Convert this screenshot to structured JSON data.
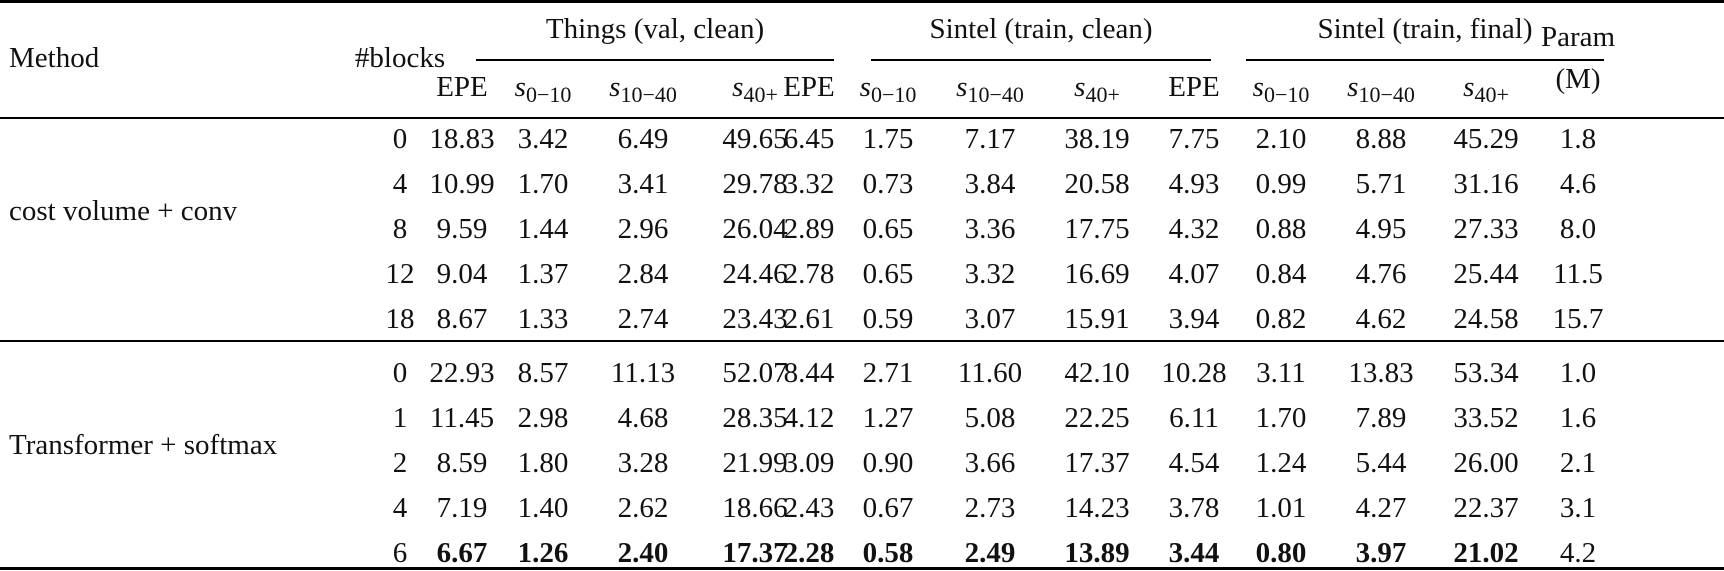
{
  "table": {
    "headers": {
      "method": "Method",
      "blocks": "#blocks",
      "groups": [
        {
          "label": "Things (val, clean)"
        },
        {
          "label": "Sintel (train, clean)"
        },
        {
          "label": "Sintel (train, final)"
        }
      ],
      "param_line1": "Param",
      "param_line2": "(M)",
      "sub": {
        "epe": "EPE",
        "s_var": "s",
        "s0_10": "0−10",
        "s10_40": "10−40",
        "s40p": "40+"
      }
    },
    "sections": [
      {
        "method": "cost volume + conv",
        "rows": [
          {
            "blocks": "0",
            "things": [
              "18.83",
              "3.42",
              "6.49",
              "49.65"
            ],
            "sintel_clean": [
              "6.45",
              "1.75",
              "7.17",
              "38.19"
            ],
            "sintel_final": [
              "7.75",
              "2.10",
              "8.88",
              "45.29"
            ],
            "param": "1.8"
          },
          {
            "blocks": "4",
            "things": [
              "10.99",
              "1.70",
              "3.41",
              "29.78"
            ],
            "sintel_clean": [
              "3.32",
              "0.73",
              "3.84",
              "20.58"
            ],
            "sintel_final": [
              "4.93",
              "0.99",
              "5.71",
              "31.16"
            ],
            "param": "4.6"
          },
          {
            "blocks": "8",
            "things": [
              "9.59",
              "1.44",
              "2.96",
              "26.04"
            ],
            "sintel_clean": [
              "2.89",
              "0.65",
              "3.36",
              "17.75"
            ],
            "sintel_final": [
              "4.32",
              "0.88",
              "4.95",
              "27.33"
            ],
            "param": "8.0"
          },
          {
            "blocks": "12",
            "things": [
              "9.04",
              "1.37",
              "2.84",
              "24.46"
            ],
            "sintel_clean": [
              "2.78",
              "0.65",
              "3.32",
              "16.69"
            ],
            "sintel_final": [
              "4.07",
              "0.84",
              "4.76",
              "25.44"
            ],
            "param": "11.5"
          },
          {
            "blocks": "18",
            "things": [
              "8.67",
              "1.33",
              "2.74",
              "23.43"
            ],
            "sintel_clean": [
              "2.61",
              "0.59",
              "3.07",
              "15.91"
            ],
            "sintel_final": [
              "3.94",
              "0.82",
              "4.62",
              "24.58"
            ],
            "param": "15.7"
          }
        ]
      },
      {
        "method": "Transformer + softmax",
        "rows": [
          {
            "blocks": "0",
            "things": [
              "22.93",
              "8.57",
              "11.13",
              "52.07"
            ],
            "sintel_clean": [
              "8.44",
              "2.71",
              "11.60",
              "42.10"
            ],
            "sintel_final": [
              "10.28",
              "3.11",
              "13.83",
              "53.34"
            ],
            "param": "1.0"
          },
          {
            "blocks": "1",
            "things": [
              "11.45",
              "2.98",
              "4.68",
              "28.35"
            ],
            "sintel_clean": [
              "4.12",
              "1.27",
              "5.08",
              "22.25"
            ],
            "sintel_final": [
              "6.11",
              "1.70",
              "7.89",
              "33.52"
            ],
            "param": "1.6"
          },
          {
            "blocks": "2",
            "things": [
              "8.59",
              "1.80",
              "3.28",
              "21.99"
            ],
            "sintel_clean": [
              "3.09",
              "0.90",
              "3.66",
              "17.37"
            ],
            "sintel_final": [
              "4.54",
              "1.24",
              "5.44",
              "26.00"
            ],
            "param": "2.1"
          },
          {
            "blocks": "4",
            "things": [
              "7.19",
              "1.40",
              "2.62",
              "18.66"
            ],
            "sintel_clean": [
              "2.43",
              "0.67",
              "2.73",
              "14.23"
            ],
            "sintel_final": [
              "3.78",
              "1.01",
              "4.27",
              "22.37"
            ],
            "param": "3.1"
          },
          {
            "blocks": "6",
            "things": [
              "6.67",
              "1.26",
              "2.40",
              "17.37"
            ],
            "sintel_clean": [
              "2.28",
              "0.58",
              "2.49",
              "13.89"
            ],
            "sintel_final": [
              "3.44",
              "0.80",
              "3.97",
              "21.02"
            ],
            "param": "4.2",
            "bold": true
          }
        ]
      }
    ]
  }
}
